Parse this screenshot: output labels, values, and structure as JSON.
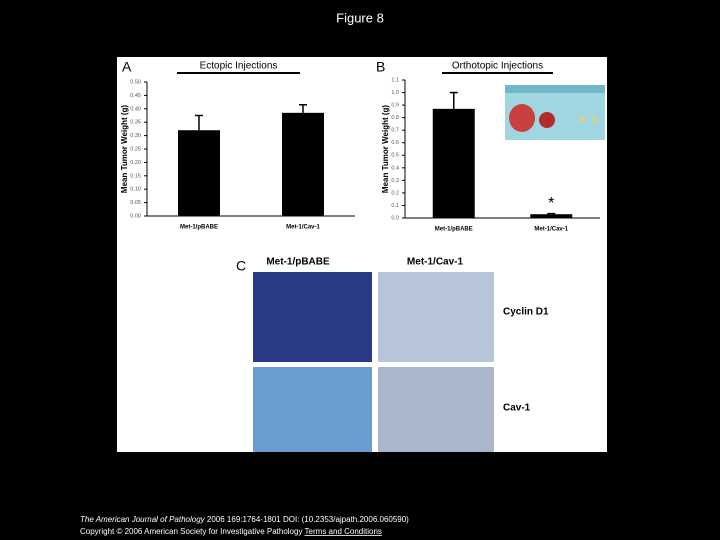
{
  "page": {
    "title": "Figure 8",
    "panel_c": {
      "label": "C",
      "columns": [
        "Met-1/pBABE",
        "Met-1/Cav-1"
      ],
      "rows": [
        "Cyclin D1",
        "Cav-1"
      ]
    },
    "footer": {
      "journal": "The American Journal of Pathology",
      "citation": "2006 169:1764-1801 DOI: (10.2353/ajpath.2006.060590)",
      "copyright": "Copyright © 2006 American Society for Investigative Pathology",
      "link": "Terms and Conditions"
    }
  },
  "chart_data": [
    {
      "type": "bar",
      "panel": "A",
      "title": "Ectopic Injections",
      "y_label": "Mean Tumor Weight (g)",
      "categories": [
        "Met-1/pBABE",
        "Met-1/Cav-1"
      ],
      "values": [
        0.32,
        0.385
      ],
      "errors": [
        0.055,
        0.03
      ],
      "color": "#000000",
      "ylim": [
        0,
        0.5
      ],
      "yticks": [
        {
          "value": 0,
          "label": "0.00"
        },
        {
          "value": 0.05,
          "label": "0.05"
        },
        {
          "value": 0.1,
          "label": "0.10"
        },
        {
          "value": 0.15,
          "label": "0.15"
        },
        {
          "value": 0.2,
          "label": "0.20"
        },
        {
          "value": 0.25,
          "label": "0.25"
        },
        {
          "value": 0.3,
          "label": "0.30"
        },
        {
          "value": 0.35,
          "label": "0.35"
        },
        {
          "value": 0.4,
          "label": "0.40"
        },
        {
          "value": 0.45,
          "label": "0.45"
        },
        {
          "value": 0.5,
          "label": "0.50"
        }
      ]
    },
    {
      "type": "bar",
      "panel": "B",
      "title": "Orthotopic Injections",
      "y_label": "Mean Tumor Weight (g)",
      "categories": [
        "Met-1/pBABE",
        "Met-1/Cav-1"
      ],
      "values": [
        0.87,
        0.03
      ],
      "errors": [
        0.13,
        0.005
      ],
      "color": "#000000",
      "annotation": "*",
      "ylim": [
        0,
        1.1
      ],
      "yticks": [
        {
          "value": 0,
          "label": "0.0"
        },
        {
          "value": 0.1,
          "label": "0.1"
        },
        {
          "value": 0.2,
          "label": "0.2"
        },
        {
          "value": 0.3,
          "label": "0.3"
        },
        {
          "value": 0.4,
          "label": "0.4"
        },
        {
          "value": 0.5,
          "label": "0.5"
        },
        {
          "value": 0.6,
          "label": "0.6"
        },
        {
          "value": 0.7,
          "label": "0.7"
        },
        {
          "value": 0.8,
          "label": "0.8"
        },
        {
          "value": 0.9,
          "label": "0.9"
        },
        {
          "value": 1,
          "label": "1.0"
        },
        {
          "value": 1.1,
          "label": "1.1"
        }
      ]
    }
  ]
}
